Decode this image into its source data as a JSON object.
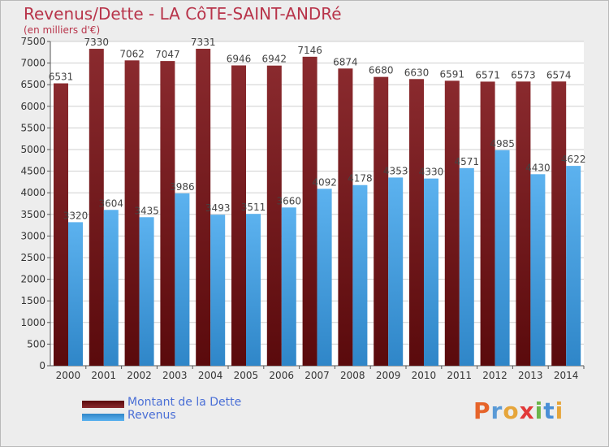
{
  "title": "Revenus/Dette - LA CôTE-SAINT-ANDRé",
  "subtitle": "(en milliers d'€)",
  "logo": "Proxiti",
  "colors": {
    "dette": "#7d1f22",
    "revenus": "#4aa3e2",
    "title": "#b8344a",
    "legend_text": "#4a6fd6",
    "plot_bg": "#ffffff",
    "grid": "#cfcfcf"
  },
  "legend": [
    {
      "label": "Montant de la Dette",
      "series": "dette"
    },
    {
      "label": "Revenus",
      "series": "revenus"
    }
  ],
  "chart_data": {
    "type": "bar",
    "categories": [
      "2000",
      "2001",
      "2002",
      "2003",
      "2004",
      "2005",
      "2006",
      "2007",
      "2008",
      "2009",
      "2010",
      "2011",
      "2012",
      "2013",
      "2014"
    ],
    "series": [
      {
        "name": "Montant de la Dette",
        "key": "dette",
        "values": [
          6531,
          7330,
          7062,
          7047,
          7331,
          6946,
          6942,
          7146,
          6874,
          6680,
          6630,
          6591,
          6571,
          6573,
          6574
        ]
      },
      {
        "name": "Revenus",
        "key": "revenus",
        "values": [
          3320,
          3604,
          3435,
          3986,
          3493,
          3511,
          3660,
          4092,
          4178,
          4353,
          4330,
          4571,
          4985,
          4430,
          4622
        ]
      }
    ],
    "ylim": [
      0,
      7500
    ],
    "ytick_step": 500,
    "grid": true,
    "legend_position": "bottom-left"
  }
}
